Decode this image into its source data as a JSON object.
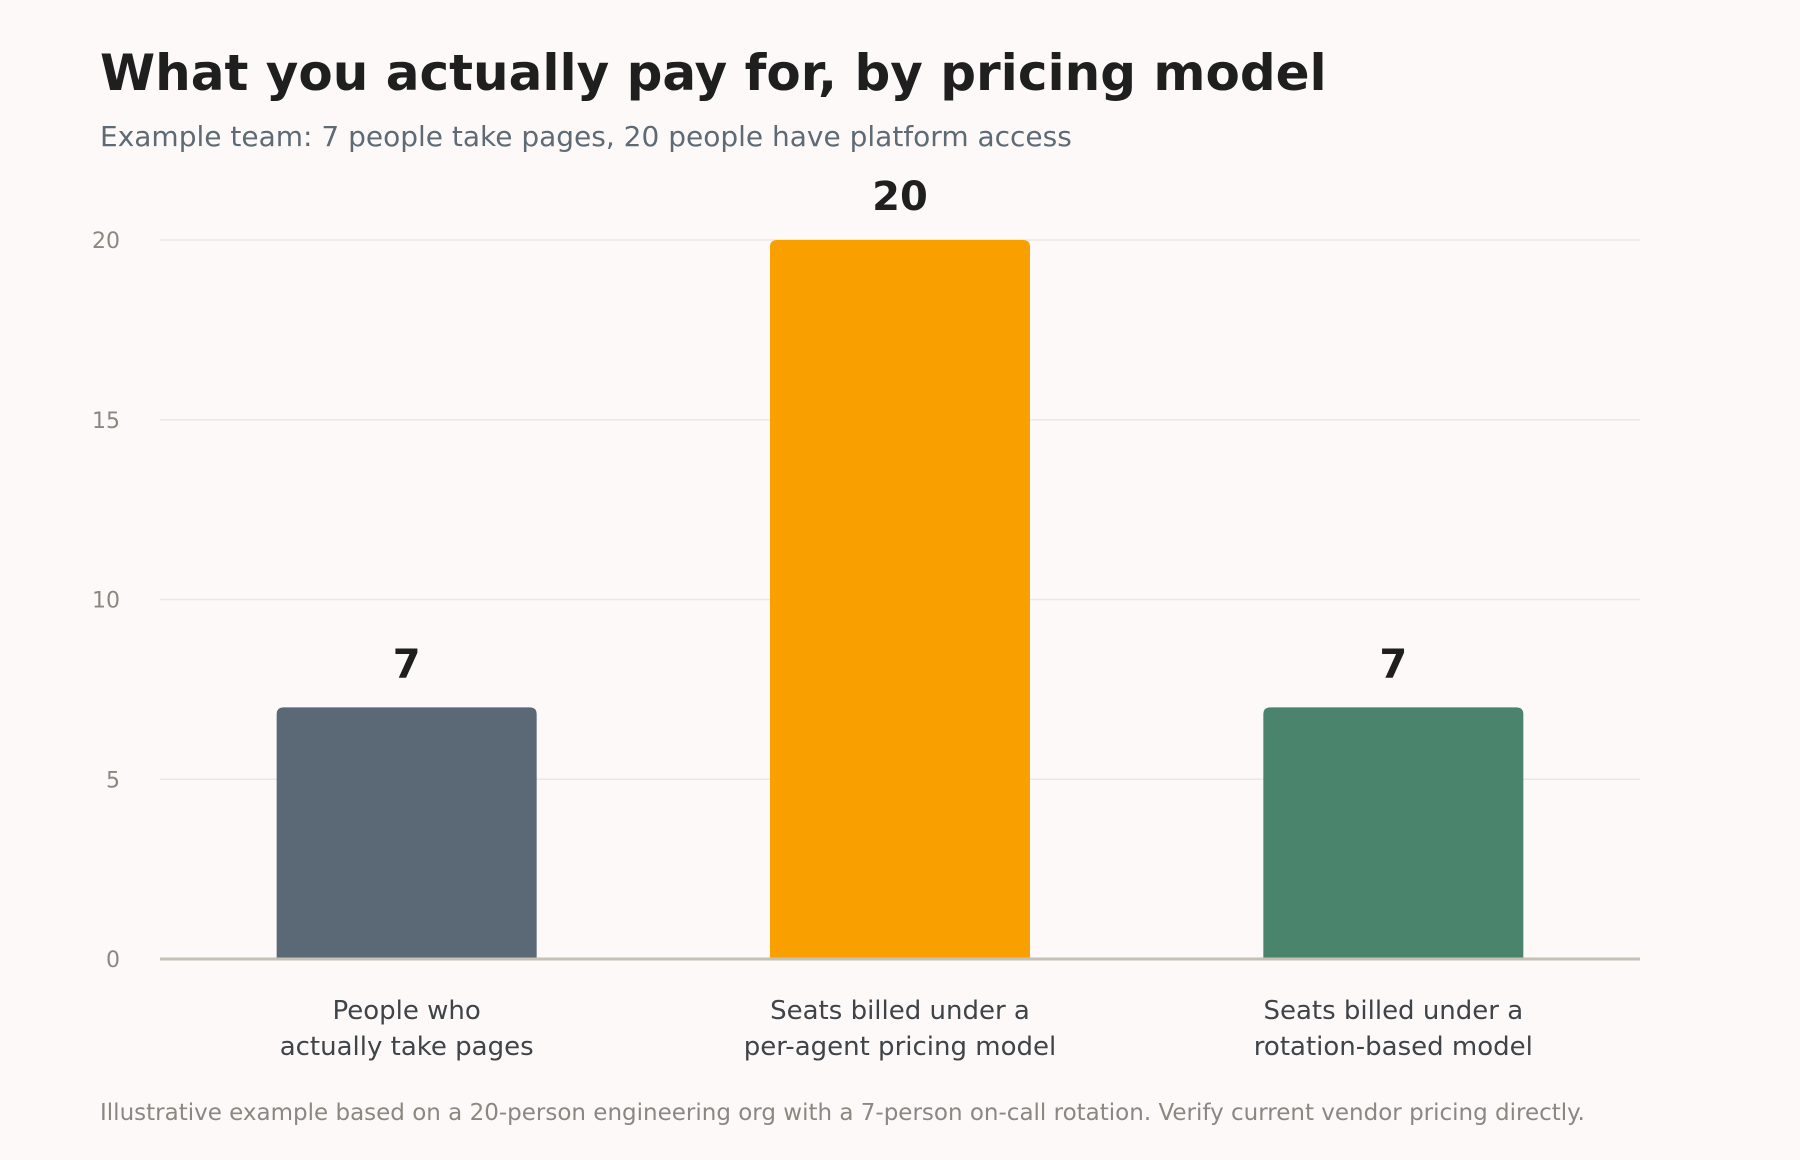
{
  "header": {
    "title": "What you actually pay for, by pricing model",
    "subtitle": "Example team: 7 people take pages, 20 people have platform access"
  },
  "footer": {
    "note": "Illustrative example based on a 20-person engineering org with a 7-person on-call rotation. Verify current vendor pricing directly."
  },
  "chart_data": {
    "type": "bar",
    "title": "What you actually pay for, by pricing model",
    "subtitle": "Example team: 7 people take pages, 20 people have platform access",
    "xlabel": "",
    "ylabel": "",
    "categories": [
      [
        "People who",
        "actually take pages"
      ],
      [
        "Seats billed under a",
        "per-agent pricing model"
      ],
      [
        "Seats billed under a",
        "rotation-based model"
      ]
    ],
    "values": [
      7,
      20,
      7
    ],
    "data_labels": [
      "7",
      "20",
      "7"
    ],
    "colors": [
      "#5b6875",
      "#f99f00",
      "#4a846c"
    ],
    "ylim": [
      0,
      20
    ],
    "yticks": [
      0,
      5,
      10,
      15,
      20
    ],
    "grid": true,
    "legend": "none"
  },
  "theme": {
    "background": "#fdf9f9",
    "gridline": "#ece7e5",
    "baseline": "#c7c0b5",
    "tick_color": "#8c8780",
    "category_label_color": "#3f4448",
    "value_label_color": "#1f1f1f"
  }
}
